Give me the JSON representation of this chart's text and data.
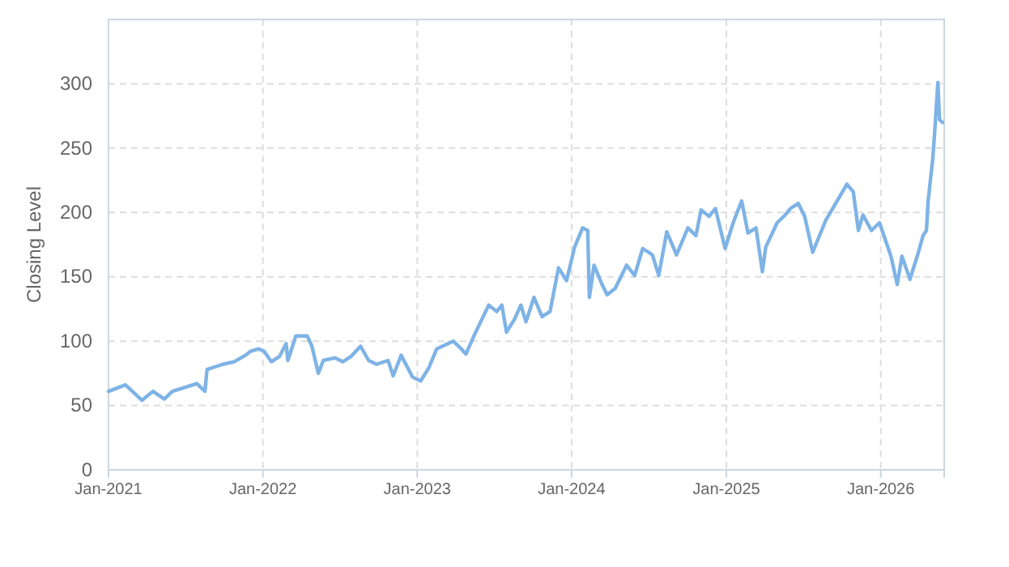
{
  "chart_data": {
    "type": "line",
    "ylabel": "Closing Level",
    "x": [
      "2021-01-01",
      "2021-02-10",
      "2021-03-21",
      "2021-04-16",
      "2021-05-13",
      "2021-06-01",
      "2021-07-29",
      "2021-08-17",
      "2021-08-22",
      "2021-09-28",
      "2021-10-25",
      "2021-11-21",
      "2021-12-02",
      "2021-12-22",
      "2022-01-04",
      "2022-01-21",
      "2022-02-09",
      "2022-02-25",
      "2022-03-01",
      "2022-03-20",
      "2022-04-16",
      "2022-04-27",
      "2022-05-12",
      "2022-05-24",
      "2022-06-20",
      "2022-07-09",
      "2022-07-28",
      "2022-08-20",
      "2022-09-08",
      "2022-09-27",
      "2022-10-24",
      "2022-11-05",
      "2022-11-24",
      "2022-12-21",
      "2023-01-09",
      "2023-01-28",
      "2023-02-16",
      "2023-03-27",
      "2023-04-15",
      "2023-04-26",
      "2023-05-15",
      "2023-06-19",
      "2023-07-08",
      "2023-07-20",
      "2023-07-31",
      "2023-08-19",
      "2023-09-03",
      "2023-09-15",
      "2023-10-04",
      "2023-10-23",
      "2023-11-11",
      "2023-12-01",
      "2023-12-20",
      "2024-01-08",
      "2024-01-27",
      "2024-02-08",
      "2024-02-12",
      "2024-02-23",
      "2024-03-13",
      "2024-03-25",
      "2024-04-13",
      "2024-05-10",
      "2024-05-29",
      "2024-06-17",
      "2024-07-10",
      "2024-07-25",
      "2024-08-13",
      "2024-09-05",
      "2024-10-02",
      "2024-10-21",
      "2024-11-02",
      "2024-11-21",
      "2024-12-06",
      "2024-12-29",
      "2025-01-17",
      "2025-02-06",
      "2025-02-21",
      "2025-03-12",
      "2025-03-27",
      "2025-04-04",
      "2025-05-01",
      "2025-05-20",
      "2025-06-01",
      "2025-06-20",
      "2025-07-05",
      "2025-07-24",
      "2025-08-24",
      "2025-09-20",
      "2025-10-13",
      "2025-10-28",
      "2025-11-09",
      "2025-11-20",
      "2025-12-10",
      "2025-12-29",
      "2026-01-25",
      "2026-02-09",
      "2026-02-20",
      "2026-03-11",
      "2026-03-31",
      "2026-04-11",
      "2026-04-19",
      "2026-04-23",
      "2026-05-04",
      "2026-05-08",
      "2026-05-16",
      "2026-05-20",
      "2026-05-27"
    ],
    "series": [
      {
        "color": "#7eb3e6",
        "values": [
          61,
          66,
          54,
          61,
          55,
          61,
          67,
          61,
          78,
          82,
          84,
          89,
          92,
          94,
          92,
          84,
          88,
          98,
          85,
          104,
          104,
          96,
          75,
          85,
          87,
          84,
          88,
          96,
          85,
          82,
          85,
          73,
          89,
          72,
          69,
          79,
          94,
          100,
          94,
          90,
          104,
          128,
          123,
          128,
          107,
          117,
          128,
          115,
          134,
          119,
          123,
          157,
          147,
          173,
          188,
          186,
          134,
          159,
          144,
          136,
          141,
          159,
          151,
          172,
          167,
          151,
          185,
          167,
          188,
          182,
          202,
          197,
          203,
          172,
          192,
          209,
          184,
          188,
          154,
          173,
          192,
          198,
          203,
          207,
          197,
          169,
          194,
          209,
          222,
          216,
          186,
          198,
          186,
          192,
          166,
          144,
          166,
          148,
          169,
          182,
          186,
          209,
          242,
          260,
          301,
          272,
          270
        ]
      }
    ],
    "xlim": [
      "2021-01-01",
      "2026-05-31"
    ],
    "xticks": [
      {
        "value": "2021-01",
        "label": "Jan-2021"
      },
      {
        "value": "2022-01",
        "label": "Jan-2022"
      },
      {
        "value": "2023-01",
        "label": "Jan-2023"
      },
      {
        "value": "2024-01",
        "label": "Jan-2024"
      },
      {
        "value": "2025-01",
        "label": "Jan-2025"
      },
      {
        "value": "2026-01",
        "label": "Jan-2026"
      }
    ],
    "ylim": [
      0,
      350
    ],
    "yticks": [
      0,
      50,
      100,
      150,
      200,
      250,
      300
    ],
    "grid": true,
    "marker": "none",
    "line_style": "solid"
  }
}
